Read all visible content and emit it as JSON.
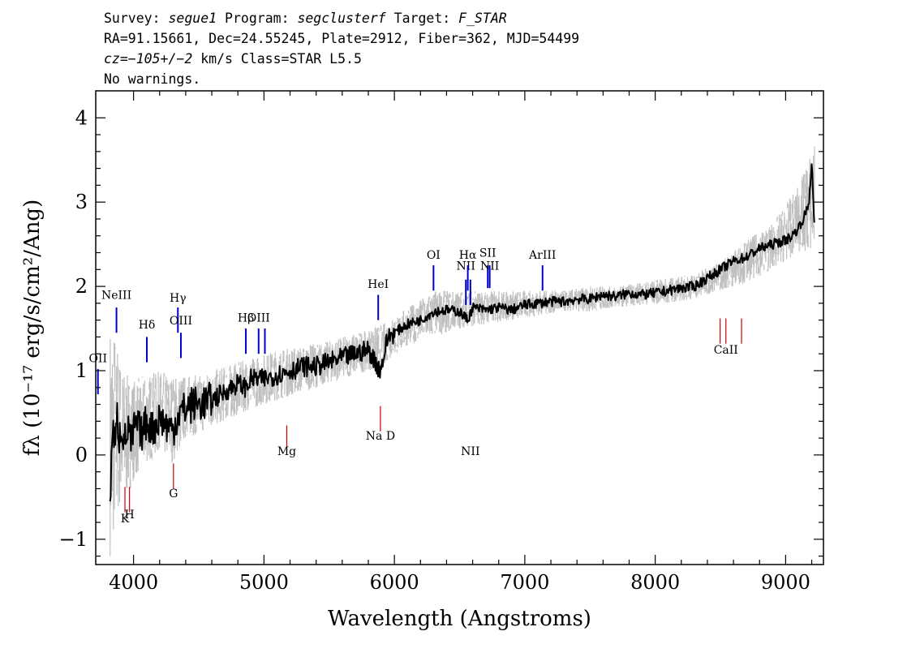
{
  "header": {
    "line1": {
      "survey_label": "Survey: ",
      "survey": "segue1",
      "program_label": " Program: ",
      "program": "segclusterf",
      "target_label": " Target: ",
      "target": "F_STAR"
    },
    "line2": "RA=91.15661, Dec=24.55245, Plate=2912, Fiber=362, MJD=54499",
    "line3": {
      "cz": "cz=−105+/−2",
      "rest": " km/s Class=STAR L5.5"
    },
    "line4": "No warnings."
  },
  "chart_data": {
    "type": "line",
    "xlabel": "Wavelength (Angstroms)",
    "ylabel": "fλ (10⁻¹⁷ erg/s/cm²/Ang)",
    "xlim": [
      3710,
      9290
    ],
    "ylim": [
      -1.3,
      4.32
    ],
    "x_ticks": [
      4000,
      5000,
      6000,
      7000,
      8000,
      9000
    ],
    "y_ticks": [
      -1,
      0,
      1,
      2,
      3,
      4
    ],
    "series": [
      {
        "role": "flux (smoothed)",
        "color": "#000000",
        "x": [
          3820,
          3830,
          3845,
          3860,
          3875,
          3890,
          3905,
          3920,
          3940,
          3960,
          3980,
          4000,
          4030,
          4060,
          4100,
          4150,
          4200,
          4250,
          4300,
          4350,
          4400,
          4450,
          4500,
          4600,
          4700,
          4800,
          4862,
          4900,
          5000,
          5100,
          5200,
          5300,
          5400,
          5500,
          5600,
          5700,
          5800,
          5893,
          5950,
          6000,
          6100,
          6200,
          6300,
          6400,
          6500,
          6563,
          6600,
          6700,
          6800,
          6900,
          7000,
          7100,
          7200,
          7300,
          7400,
          7500,
          7600,
          7700,
          7800,
          7900,
          8000,
          8100,
          8200,
          8300,
          8400,
          8500,
          8600,
          8700,
          8800,
          8900,
          9000,
          9050,
          9100,
          9150,
          9180,
          9200,
          9220
        ],
        "y": [
          -0.7,
          0.1,
          0.3,
          0.1,
          0.45,
          0.2,
          0.35,
          0.25,
          0.15,
          0.35,
          0.1,
          0.3,
          0.35,
          0.25,
          0.4,
          0.3,
          0.45,
          0.35,
          0.3,
          0.5,
          0.55,
          0.6,
          0.6,
          0.65,
          0.75,
          0.85,
          0.8,
          0.9,
          0.9,
          0.95,
          1.0,
          1.05,
          1.05,
          1.1,
          1.15,
          1.2,
          1.25,
          1.0,
          1.4,
          1.45,
          1.55,
          1.6,
          1.7,
          1.72,
          1.7,
          1.6,
          1.75,
          1.72,
          1.75,
          1.72,
          1.78,
          1.8,
          1.82,
          1.82,
          1.85,
          1.85,
          1.9,
          1.88,
          1.92,
          1.9,
          1.92,
          1.95,
          1.98,
          2.0,
          2.1,
          2.2,
          2.3,
          2.35,
          2.45,
          2.5,
          2.55,
          2.6,
          2.7,
          2.85,
          3.0,
          3.5,
          2.7
        ]
      },
      {
        "role": "flux (noise envelope)",
        "color": "#c0c0c0",
        "x": [
          3820,
          3860,
          3900,
          3950,
          4000,
          4100,
          4200,
          4300,
          4400,
          4500,
          4700,
          4900,
          5100,
          5300,
          5500,
          5700,
          5900,
          6100,
          6300,
          6500,
          6700,
          6900,
          7100,
          7300,
          7500,
          7700,
          7900,
          8100,
          8300,
          8500,
          8700,
          8900,
          9100,
          9220
        ],
        "y_low": [
          -1.2,
          -0.9,
          -0.6,
          -0.5,
          -0.3,
          -0.1,
          0.0,
          -0.1,
          0.2,
          0.25,
          0.4,
          0.55,
          0.65,
          0.75,
          0.85,
          0.95,
          1.05,
          1.3,
          1.4,
          1.5,
          1.55,
          1.6,
          1.65,
          1.7,
          1.7,
          1.75,
          1.78,
          1.8,
          1.85,
          1.95,
          2.05,
          2.2,
          2.4,
          2.4
        ],
        "y_high": [
          1.6,
          1.5,
          1.1,
          0.95,
          0.9,
          0.95,
          1.0,
          0.95,
          0.95,
          0.95,
          1.05,
          1.15,
          1.25,
          1.3,
          1.35,
          1.45,
          1.55,
          1.75,
          1.95,
          1.95,
          1.95,
          1.95,
          1.95,
          1.95,
          2.0,
          2.0,
          2.05,
          2.1,
          2.15,
          2.3,
          2.55,
          2.75,
          3.2,
          3.7
        ]
      }
    ],
    "emission_lines": [
      {
        "label": "OII",
        "x": 3727,
        "y_label": 1.1,
        "y0": 0.72,
        "y1": 1.02
      },
      {
        "label": "NeIII",
        "x": 3869,
        "y_label": 1.85,
        "y0": 1.45,
        "y1": 1.75
      },
      {
        "label": "Hδ",
        "x": 4102,
        "y_label": 1.5,
        "y0": 1.1,
        "y1": 1.4
      },
      {
        "label": "Hγ",
        "x": 4340,
        "y_label": 1.82,
        "y0": 1.45,
        "y1": 1.75
      },
      {
        "label": "OIII",
        "x": 4363,
        "y_label": 1.55,
        "y0": 1.15,
        "y1": 1.45
      },
      {
        "label": "Hβ",
        "x": 4861,
        "y_label": 1.58,
        "y0": 1.2,
        "y1": 1.5
      },
      {
        "label": "OIII",
        "x": 4959,
        "y_label": 1.58,
        "y0": 1.2,
        "y1": 1.5
      },
      {
        "label": "",
        "x": 5007,
        "y_label": 0,
        "y0": 1.2,
        "y1": 1.5
      },
      {
        "label": "HeI",
        "x": 5876,
        "y_label": 1.98,
        "y0": 1.6,
        "y1": 1.9
      },
      {
        "label": "OI",
        "x": 6300,
        "y_label": 2.33,
        "y0": 1.95,
        "y1": 2.25
      },
      {
        "label": "NII",
        "x": 6548,
        "y_label": 2.2,
        "y0": 1.78,
        "y1": 2.08
      },
      {
        "label": "Hα",
        "x": 6563,
        "y_label": 2.33,
        "y0": 1.95,
        "y1": 2.25
      },
      {
        "label": "NII",
        "x": 6583,
        "y_label": 0,
        "y0": 1.78,
        "y1": 2.08
      },
      {
        "label": "SII",
        "x": 6716,
        "y_label": 2.35,
        "y0": 1.98,
        "y1": 2.25
      },
      {
        "label": "NII",
        "x": 6731,
        "y_label": 2.2,
        "y0": 1.98,
        "y1": 2.25
      },
      {
        "label": "ArIII",
        "x": 7136,
        "y_label": 2.33,
        "y0": 1.95,
        "y1": 2.25
      }
    ],
    "absorption_lines": [
      {
        "label": "K",
        "x": 3934,
        "y_label": -0.8,
        "y0": -0.38,
        "y1": -0.68
      },
      {
        "label": "H",
        "x": 3969,
        "y_label": -0.75,
        "y0": -0.38,
        "y1": -0.68
      },
      {
        "label": "G",
        "x": 4306,
        "y_label": -0.5,
        "y0": -0.1,
        "y1": -0.4
      },
      {
        "label": "Mg",
        "x": 5175,
        "y_label": 0.0,
        "y0": 0.35,
        "y1": 0.05
      },
      {
        "label": "Na D",
        "x": 5893,
        "y_label": 0.18,
        "y0": 0.58,
        "y1": 0.28
      },
      {
        "label": "",
        "x": 8498,
        "y_label": 0,
        "y0": 1.62,
        "y1": 1.32
      },
      {
        "label": "CaII",
        "x": 8542,
        "y_label": 1.2,
        "y0": 1.62,
        "y1": 1.32
      },
      {
        "label": "",
        "x": 8662,
        "y_label": 0,
        "y0": 1.62,
        "y1": 1.32
      }
    ]
  }
}
